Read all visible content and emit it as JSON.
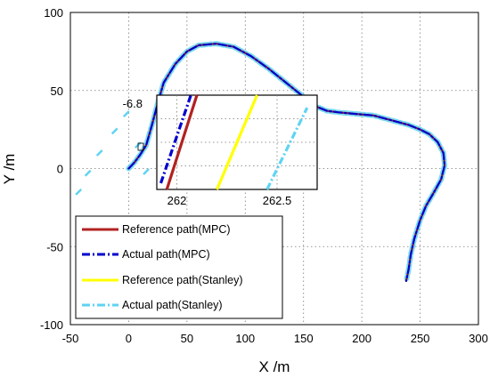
{
  "chart_data": {
    "type": "line",
    "xlabel": "X /m",
    "ylabel": "Y /m",
    "xlim": [
      -50,
      300
    ],
    "ylim": [
      -100,
      100
    ],
    "xticks": [
      -50,
      0,
      50,
      100,
      150,
      200,
      250,
      300
    ],
    "yticks": [
      -100,
      -50,
      0,
      50,
      100
    ],
    "grid": true,
    "legend_position": "bottom-left",
    "series": [
      {
        "name": "Reference path(MPC)",
        "color": "#b22222",
        "style": "solid",
        "points": [
          [
            0,
            0
          ],
          [
            5,
            4
          ],
          [
            10,
            9
          ],
          [
            15,
            15
          ],
          [
            20,
            28
          ],
          [
            25,
            42
          ],
          [
            30,
            55
          ],
          [
            40,
            67
          ],
          [
            50,
            75
          ],
          [
            60,
            79
          ],
          [
            75,
            80
          ],
          [
            90,
            78
          ],
          [
            105,
            72
          ],
          [
            120,
            64
          ],
          [
            135,
            55
          ],
          [
            150,
            46
          ],
          [
            160,
            40
          ],
          [
            170,
            37
          ],
          [
            180,
            36
          ],
          [
            195,
            35
          ],
          [
            210,
            34
          ],
          [
            225,
            31
          ],
          [
            240,
            28
          ],
          [
            250,
            25
          ],
          [
            258,
            22
          ],
          [
            265,
            17
          ],
          [
            270,
            10
          ],
          [
            271,
            2
          ],
          [
            268,
            -7
          ],
          [
            262,
            -15
          ],
          [
            255,
            -24
          ],
          [
            250,
            -33
          ],
          [
            245,
            -45
          ],
          [
            242,
            -55
          ],
          [
            240,
            -65
          ],
          [
            238,
            -72
          ]
        ]
      },
      {
        "name": "Actual path(MPC)",
        "color": "#0000cd",
        "style": "dash-dot",
        "points": [
          [
            0,
            0
          ],
          [
            5,
            4
          ],
          [
            10,
            9
          ],
          [
            15,
            15
          ],
          [
            20,
            28
          ],
          [
            25,
            42
          ],
          [
            30,
            55
          ],
          [
            40,
            67
          ],
          [
            50,
            75
          ],
          [
            60,
            79
          ],
          [
            75,
            80
          ],
          [
            90,
            78
          ],
          [
            105,
            72
          ],
          [
            120,
            64
          ],
          [
            135,
            55
          ],
          [
            150,
            46
          ],
          [
            160,
            40
          ],
          [
            170,
            37
          ],
          [
            180,
            36
          ],
          [
            195,
            35
          ],
          [
            210,
            34
          ],
          [
            225,
            31
          ],
          [
            240,
            28
          ],
          [
            250,
            25
          ],
          [
            258,
            22
          ],
          [
            265,
            17
          ],
          [
            270,
            10
          ],
          [
            271,
            2
          ],
          [
            268,
            -7
          ],
          [
            262,
            -15
          ],
          [
            255,
            -24
          ],
          [
            250,
            -33
          ],
          [
            245,
            -45
          ],
          [
            242,
            -55
          ],
          [
            240,
            -65
          ],
          [
            238,
            -72
          ]
        ]
      },
      {
        "name": "Reference path(Stanley)",
        "color": "#ffff00",
        "style": "solid",
        "points": [
          [
            0,
            0
          ],
          [
            5,
            4
          ],
          [
            10,
            9
          ],
          [
            15,
            15
          ],
          [
            20,
            28
          ],
          [
            25,
            42
          ],
          [
            30,
            55
          ],
          [
            40,
            67
          ],
          [
            50,
            75
          ],
          [
            60,
            79
          ],
          [
            75,
            80
          ],
          [
            90,
            78
          ],
          [
            105,
            72
          ],
          [
            120,
            64
          ],
          [
            135,
            55
          ],
          [
            150,
            46
          ],
          [
            160,
            40
          ],
          [
            170,
            37
          ],
          [
            180,
            36
          ],
          [
            195,
            35
          ],
          [
            210,
            34
          ],
          [
            225,
            31
          ],
          [
            240,
            28
          ],
          [
            250,
            25
          ],
          [
            258,
            22
          ],
          [
            265,
            17
          ],
          [
            270,
            10
          ],
          [
            271,
            2
          ],
          [
            268,
            -7
          ],
          [
            262,
            -15
          ],
          [
            255,
            -24
          ],
          [
            250,
            -33
          ],
          [
            245,
            -45
          ],
          [
            242,
            -55
          ],
          [
            240,
            -65
          ],
          [
            238,
            -72
          ]
        ]
      },
      {
        "name": "Actual path(Stanley)",
        "color": "#5fd3f3",
        "style": "dash-dot",
        "points": [
          [
            0,
            0
          ],
          [
            5,
            4
          ],
          [
            10,
            9
          ],
          [
            15,
            15
          ],
          [
            20,
            28
          ],
          [
            25,
            42
          ],
          [
            30,
            55
          ],
          [
            40,
            67
          ],
          [
            50,
            75
          ],
          [
            60,
            79
          ],
          [
            75,
            80
          ],
          [
            90,
            78
          ],
          [
            105,
            72
          ],
          [
            120,
            64
          ],
          [
            135,
            55
          ],
          [
            150,
            46
          ],
          [
            160,
            40
          ],
          [
            170,
            37
          ],
          [
            180,
            36
          ],
          [
            195,
            35
          ],
          [
            210,
            34
          ],
          [
            225,
            31
          ],
          [
            240,
            28
          ],
          [
            250,
            25
          ],
          [
            258,
            22
          ],
          [
            265,
            17
          ],
          [
            270,
            10
          ],
          [
            271,
            2
          ],
          [
            268,
            -7
          ],
          [
            262,
            -15
          ],
          [
            255,
            -24
          ],
          [
            250,
            -33
          ],
          [
            245,
            -45
          ],
          [
            242,
            -55
          ],
          [
            240,
            -65
          ],
          [
            238,
            -72
          ]
        ]
      }
    ],
    "stray_points_stanley": [
      [
        -43,
        -15
      ],
      [
        -35,
        -3
      ],
      [
        -25,
        10
      ],
      [
        -12,
        24
      ],
      [
        -2,
        35
      ],
      [
        8,
        15
      ],
      [
        15,
        -2
      ]
    ],
    "inset": {
      "xlim": [
        261.9,
        262.7
      ],
      "ylim": [
        -6.95,
        -6.8
      ],
      "xticks": [
        262,
        262.5
      ],
      "xtick_labels": [
        "262",
        "262.5"
      ],
      "ytick_label": "-6.8",
      "lines": [
        {
          "series": "Reference path(MPC)",
          "points": [
            [
              261.95,
              -6.95
            ],
            [
              262.1,
              -6.8
            ]
          ]
        },
        {
          "series": "Actual path(MPC)",
          "points": [
            [
              261.92,
              -6.94
            ],
            [
              262.07,
              -6.8
            ]
          ]
        },
        {
          "series": "Reference path(Stanley)",
          "points": [
            [
              262.2,
              -6.95
            ],
            [
              262.4,
              -6.8
            ]
          ]
        },
        {
          "series": "Actual path(Stanley)",
          "points": [
            [
              262.45,
              -6.95
            ],
            [
              262.65,
              -6.82
            ]
          ]
        }
      ]
    }
  }
}
